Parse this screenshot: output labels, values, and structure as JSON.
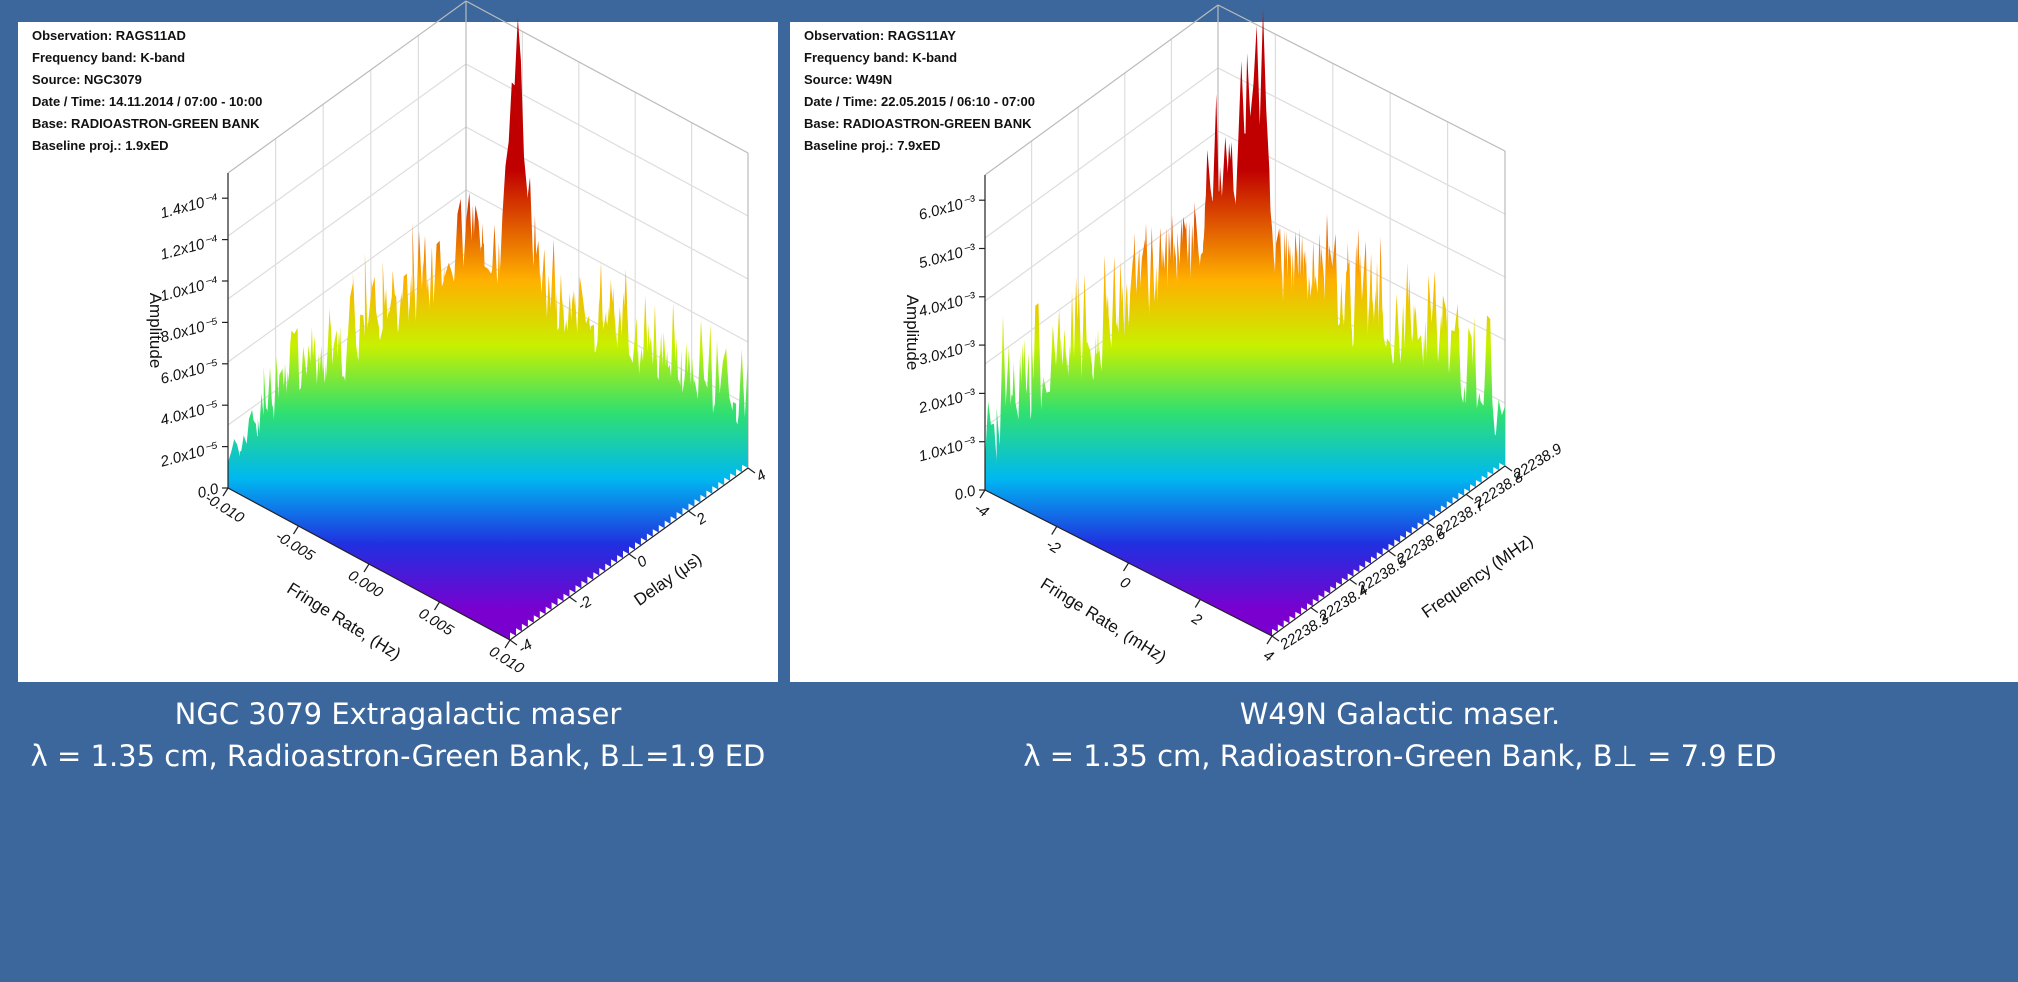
{
  "panels": [
    {
      "info": [
        "Observation: RAGS11AD",
        "Frequency band: K-band",
        "Source: NGC3079",
        "Date / Time: 14.11.2014 / 07:00 - 10:00",
        "Base: RADIOASTRON-GREEN BANK",
        "Baseline proj.: 1.9xED"
      ],
      "z_axis": {
        "label": "Amplitude",
        "ticks": [
          "0.0",
          "2.0x10⁻⁵",
          "4.0x10⁻⁵",
          "6.0x10⁻⁵",
          "8.0x10⁻⁵",
          "1.0x10⁻⁴",
          "1.2x10⁻⁴",
          "1.4x10⁻⁴"
        ]
      },
      "x_axis": {
        "label": "Fringe Rate, (Hz)",
        "ticks": [
          "-0.010",
          "-0.005",
          "0.000",
          "0.005",
          "0.010"
        ]
      },
      "y_axis": {
        "label": "Delay (μs)",
        "ticks": [
          "-4",
          "-2",
          "0",
          "2",
          "4"
        ]
      },
      "caption": [
        "NGC 3079 Extragalactic maser",
        "λ = 1.35 cm, Radioastron-Green Bank, B⊥=1.9 ED"
      ]
    },
    {
      "info": [
        "Observation: RAGS11AY",
        "Frequency band: K-band",
        "Source: W49N",
        "Date / Time: 22.05.2015 / 06:10 - 07:00",
        "Base: RADIOASTRON-GREEN BANK",
        "Baseline proj.: 7.9xED"
      ],
      "z_axis": {
        "label": "Amplitude",
        "ticks": [
          "0.0",
          "1.0x10⁻³",
          "2.0x10⁻³",
          "3.0x10⁻³",
          "4.0x10⁻³",
          "5.0x10⁻³",
          "6.0x10⁻³"
        ]
      },
      "x_axis": {
        "label": "Fringe Rate, (mHz)",
        "ticks": [
          "-4",
          "-2",
          "0",
          "2",
          "4"
        ]
      },
      "y_axis": {
        "label": "Frequency (MHz)",
        "ticks": [
          "22238.3",
          "22238.4",
          "22238.5",
          "22238.6",
          "22238.7",
          "22238.8",
          "22238.9"
        ]
      },
      "caption": [
        "W49N Galactic maser.",
        "λ = 1.35 cm, Radioastron-Green Bank, B⊥ =  7.9 ED"
      ]
    }
  ]
}
